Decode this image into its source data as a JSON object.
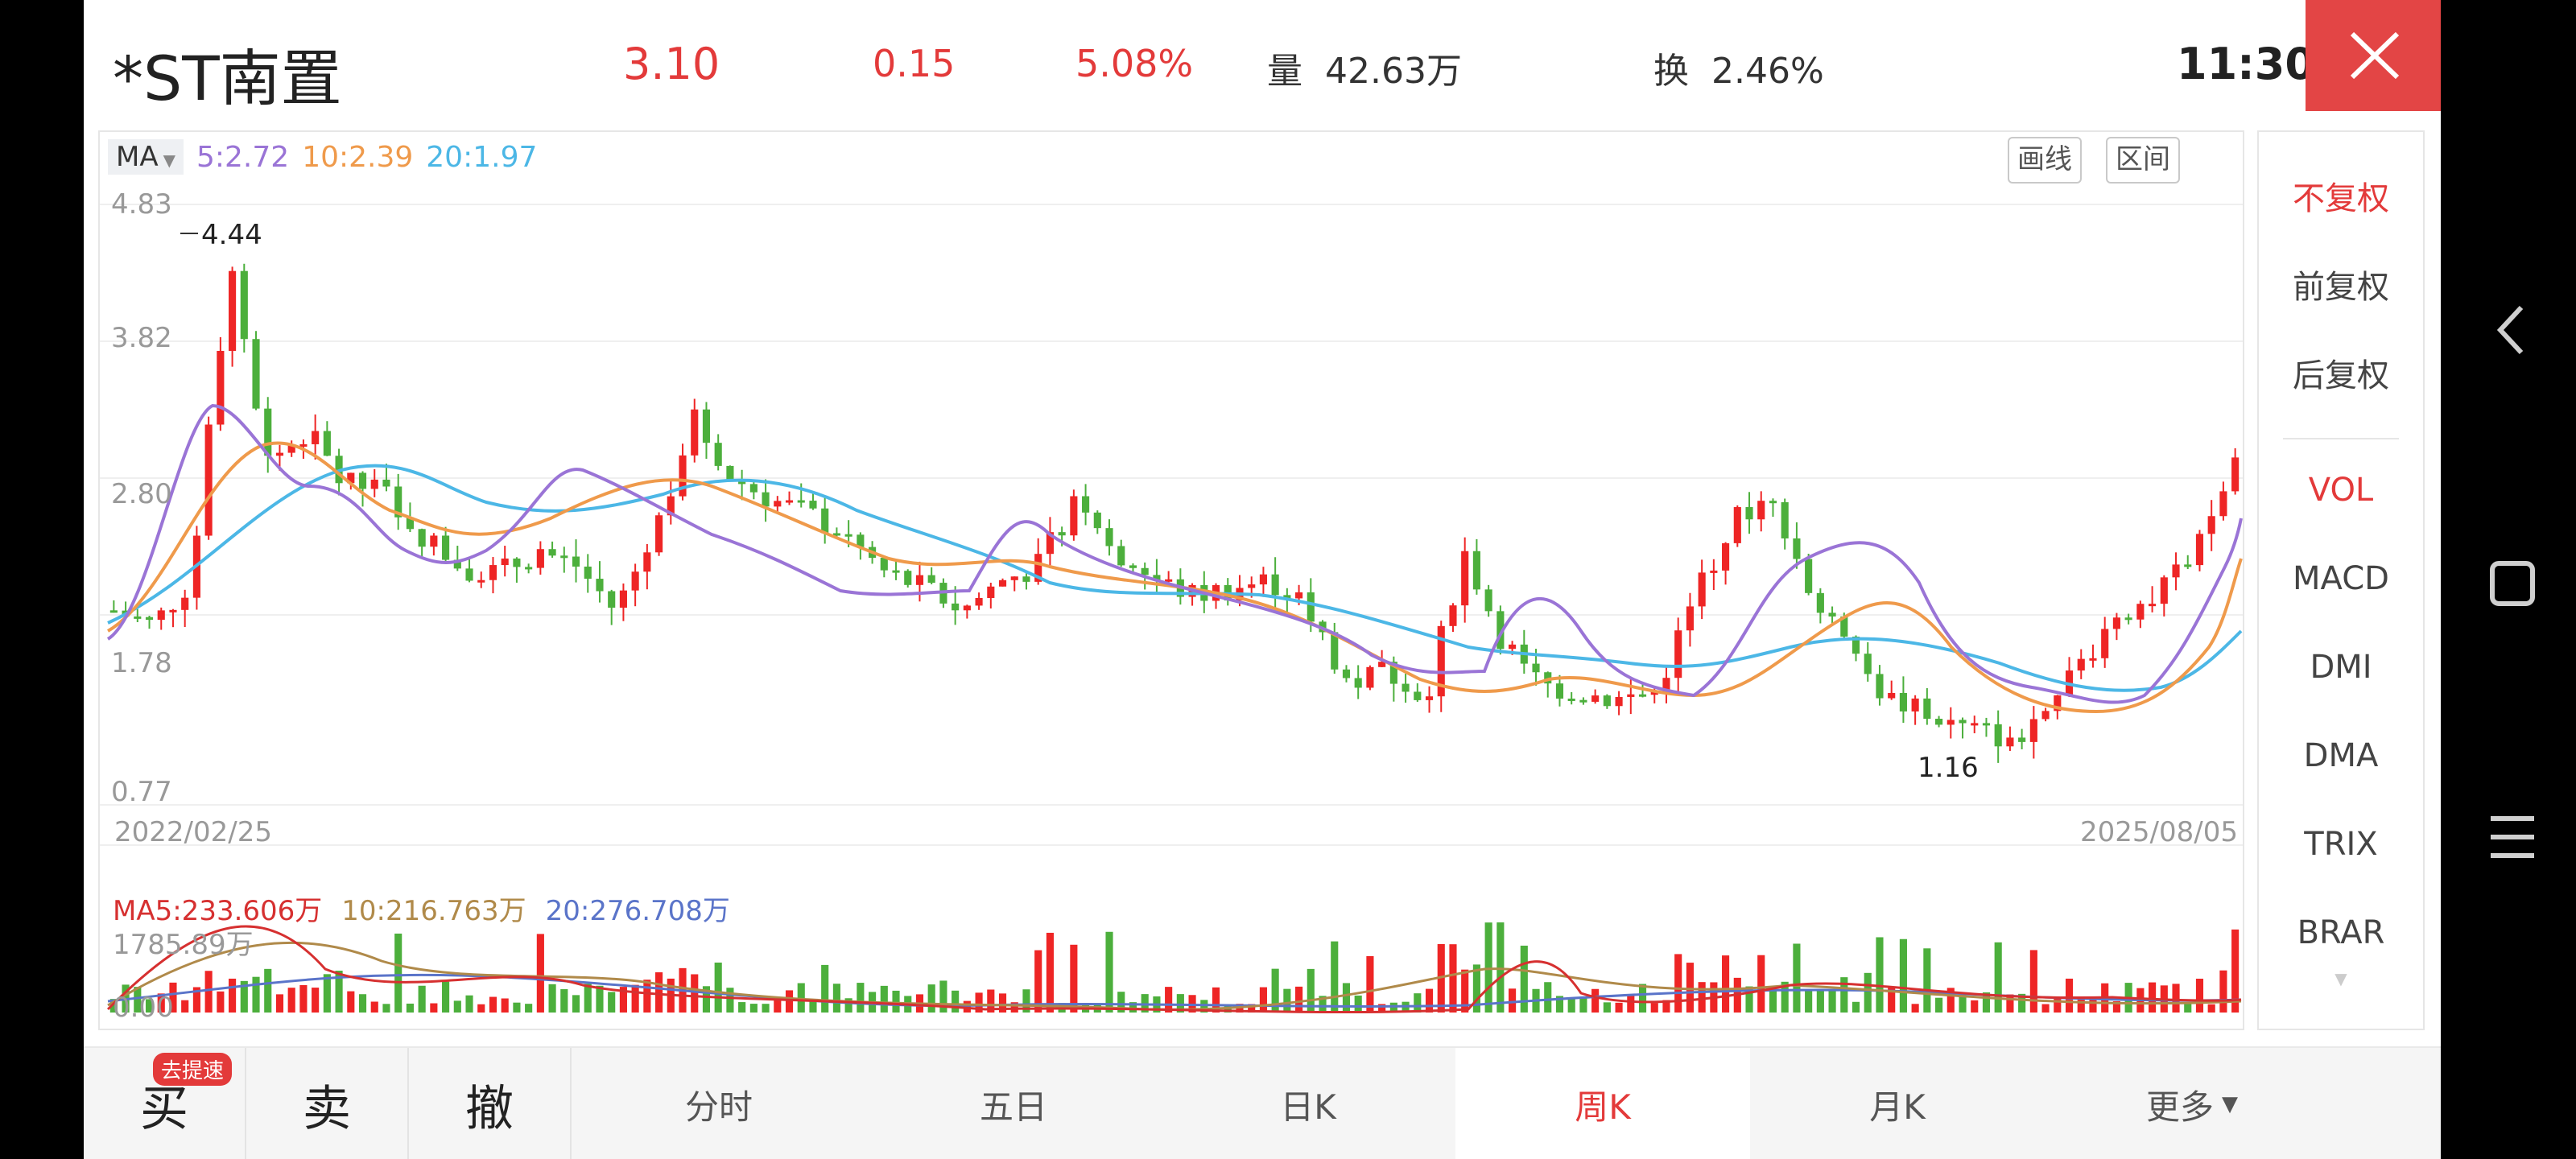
{
  "header": {
    "stock_name": "*ST南置",
    "price": "3.10",
    "change": "0.15",
    "change_pct": "5.08%",
    "volume_label": "量",
    "volume_value": "42.63万",
    "turnover_label": "换",
    "turnover_value": "2.46%",
    "time": "11:30",
    "close_icon": "close-icon"
  },
  "chart": {
    "ma_selector": "MA",
    "ma5": "5:2.72",
    "ma10": "10:2.39",
    "ma20": "20:1.97",
    "tool_draw": "画线",
    "tool_range": "区间",
    "y_ticks": [
      "4.83",
      "3.82",
      "2.80",
      "1.78",
      "0.77"
    ],
    "high_label": "4.44",
    "low_label": "1.16",
    "date_start": "2022/02/25",
    "date_end": "2025/08/05",
    "vol_ma5": "MA5:233.606万",
    "vol_ma10": "10:216.763万",
    "vol_ma20": "20:276.708万",
    "vol_max": "1785.89万",
    "vol_min": "0.00",
    "colors": {
      "up": "#ee2525",
      "down": "#4caf3c",
      "ma5": "#9a74d6",
      "ma10": "#ef9a4b",
      "ma20": "#4cb7e6"
    }
  },
  "chart_data": {
    "type": "candlestick",
    "title": "",
    "x_range": [
      "2022/02/25",
      "2025/08/05"
    ],
    "ylim": [
      0.77,
      4.83
    ],
    "y_ticks": [
      4.83,
      3.82,
      2.8,
      1.78,
      0.77
    ],
    "annotations": [
      {
        "label": "4.44",
        "type": "high"
      },
      {
        "label": "1.16",
        "type": "low"
      }
    ],
    "period": "weekly",
    "approx_close_path": [
      2.1,
      2.0,
      2.3,
      4.4,
      3.1,
      3.3,
      2.95,
      2.9,
      2.6,
      2.4,
      2.35,
      2.5,
      2.4,
      2.1,
      2.6,
      3.4,
      3.0,
      2.85,
      2.75,
      2.6,
      2.35,
      2.25,
      2.1,
      2.3,
      2.4,
      2.9,
      2.5,
      2.3,
      2.2,
      2.25,
      2.3,
      2.1,
      1.6,
      1.7,
      1.5,
      2.5,
      1.9,
      1.6,
      1.55,
      1.5,
      1.55,
      2.2,
      2.7,
      2.9,
      2.2,
      1.8,
      1.5,
      1.4,
      1.3,
      1.25,
      1.3,
      1.75,
      2.1,
      2.2,
      2.5,
      3.1
    ]
  },
  "right_menu": {
    "items": [
      "不复权",
      "前复权",
      "后复权",
      "VOL",
      "MACD",
      "DMI",
      "DMA",
      "TRIX",
      "BRAR"
    ]
  },
  "bottom_bar": {
    "buy": "买",
    "buy_badge": "去提速",
    "sell": "卖",
    "cancel": "撤",
    "tabs": [
      "分时",
      "五日",
      "日K",
      "周K",
      "月K",
      "更多"
    ]
  },
  "nav": {
    "icons": [
      "back-icon",
      "home-icon",
      "menu-icon"
    ]
  }
}
